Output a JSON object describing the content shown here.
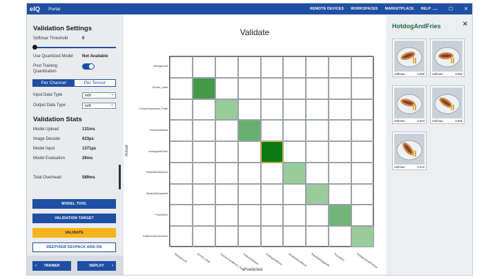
{
  "titlebar": {
    "logo": "eIQ",
    "app_name": "Portal",
    "nav": [
      "REMOTE DEVICES",
      "WORKSPACES",
      "MARKETPLACE",
      "HELP"
    ],
    "controls": {
      "minimize": "—",
      "maximize": "☐",
      "close": "✕"
    }
  },
  "sidebar": {
    "settings_title": "Validation Settings",
    "softmax_label": "Softmax Threshold",
    "softmax_value": "0",
    "softmax_level": 0,
    "quantized_label": "Use Quantized Model",
    "quantized_value": "Not Available",
    "ptq_label_1": "Post Training",
    "ptq_label_2": "Quantization",
    "ptq_on": true,
    "seg": {
      "left": "Per Channel",
      "right": "Per Tensor"
    },
    "input_type_label": "Input Data Type",
    "input_type_value": "int8",
    "output_type_label": "Output Data Type",
    "output_type_value": "int8",
    "stats_title": "Validation Stats",
    "stats": [
      {
        "label": "Model Upload",
        "value": "131ms"
      },
      {
        "label": "Image Decode",
        "value": "623µs"
      },
      {
        "label": "Model Input",
        "value": "1371µs"
      },
      {
        "label": "Model Evaluation",
        "value": "26ms"
      }
    ],
    "total_label": "Total Overhead",
    "total_value": "589ms",
    "buttons": {
      "model_tool": "MODEL TOOL",
      "validation_target": "VALIDATION TARGET",
      "validate": "VALIDATE",
      "deepview": "DEEPVIEW DEVPACK ADD-ON"
    },
    "trainer": "TRAINER",
    "deploy": "DEPLOY",
    "arrow_left": "‹",
    "arrow_right": "›"
  },
  "main": {
    "title": "Validate",
    "xlabel": "Predicted",
    "ylabel": "Actual"
  },
  "chart_data": {
    "type": "heatmap",
    "title": "Validate",
    "xlabel": "Predicted",
    "ylabel": "Actual",
    "classes": [
      "Background",
      "Burrito_plate",
      "ChickenSandwich_Plate",
      "ChipsAndSalsa",
      "HotdogAndFries",
      "MeatballSandwich",
      "MeatballSpaghetti",
      "PizzaSlice",
      "PotatoesAndCheese"
    ],
    "selected": "HotdogAndFries",
    "intensity": [
      [
        0,
        0,
        0,
        0,
        0,
        0,
        0,
        0,
        0
      ],
      [
        0,
        0.7,
        0,
        0,
        0,
        0,
        0,
        0,
        0
      ],
      [
        0,
        0,
        0.25,
        0,
        0,
        0,
        0,
        0,
        0
      ],
      [
        0,
        0,
        0,
        0.5,
        0,
        0,
        0,
        0,
        0
      ],
      [
        0,
        0,
        0,
        0,
        1.0,
        0,
        0,
        0,
        0
      ],
      [
        0,
        0,
        0,
        0,
        0,
        0.25,
        0,
        0,
        0
      ],
      [
        0,
        0,
        0,
        0,
        0,
        0,
        0.25,
        0,
        0
      ],
      [
        0,
        0,
        0,
        0,
        0,
        0,
        0,
        0.45,
        0
      ],
      [
        0,
        0,
        0,
        0,
        0,
        0,
        0,
        0,
        0.25
      ]
    ]
  },
  "right": {
    "title": "HotdogAndFries",
    "close": "✕",
    "thumbs": [
      {
        "label": "Softmax:",
        "value": "0.805"
      },
      {
        "label": "Softmax:",
        "value": "0.953"
      },
      {
        "label": "Softmax:",
        "value": "0.934"
      },
      {
        "label": "Softmax:",
        "value": "0.805"
      },
      {
        "label": "Softmax:",
        "value": "0.434"
      }
    ]
  },
  "colors": {
    "brand": "#1f4fa3",
    "accent": "#f6b31c",
    "diag_strong": "#0a7a12",
    "diag_light": "#c8e6c9",
    "selected_border": "#f6b31c"
  }
}
